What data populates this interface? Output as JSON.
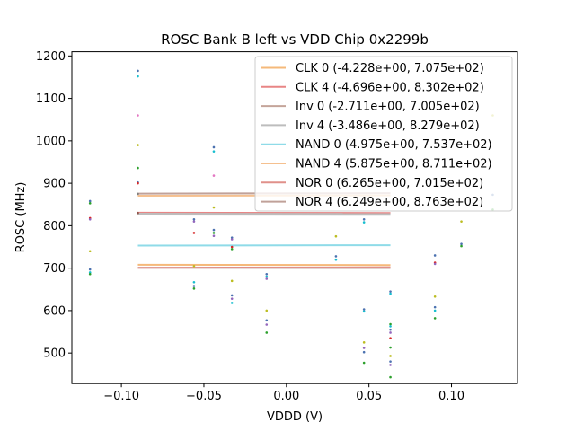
{
  "chart_data": {
    "type": "scatter",
    "title": "ROSC Bank B left vs VDD Chip 0x2299b",
    "xlabel": "VDDD (V)",
    "ylabel": "ROSC (MHz)",
    "xlim": [
      -0.13,
      0.14
    ],
    "ylim": [
      428,
      1210
    ],
    "xticks": [
      -0.1,
      -0.05,
      0.0,
      0.05,
      0.1
    ],
    "xtick_labels": [
      "−0.10",
      "−0.05",
      "0.00",
      "0.05",
      "0.10"
    ],
    "yticks": [
      500,
      600,
      700,
      800,
      900,
      1000,
      1100,
      1200
    ],
    "ytick_labels": [
      "500",
      "600",
      "700",
      "800",
      "900",
      "1000",
      "1100",
      "1200"
    ],
    "fit_range": [
      -0.09,
      0.063
    ],
    "legend_position": "top-right",
    "series": [
      {
        "name": "CLK 0",
        "label": "CLK 0 (-4.228e+00, 7.075e+02)",
        "slope": -4.228,
        "intercept": 707.5,
        "color": "#f5b97a"
      },
      {
        "name": "CLK 4",
        "label": "CLK 4 (-4.696e+00, 8.302e+02)",
        "slope": -4.696,
        "intercept": 830.2,
        "color": "#e88585"
      },
      {
        "name": "Inv 0",
        "label": "Inv 0 (-2.711e+00, 7.005e+02)",
        "slope": -2.711,
        "intercept": 700.5,
        "color": "#c4a49a"
      },
      {
        "name": "Inv 4",
        "label": "Inv 4 (-3.486e+00, 8.279e+02)",
        "slope": -3.486,
        "intercept": 827.9,
        "color": "#bdbdbd"
      },
      {
        "name": "NAND 0",
        "label": "NAND 0 (4.975e+00, 7.537e+02)",
        "slope": 4.975,
        "intercept": 753.7,
        "color": "#8fdbe8"
      },
      {
        "name": "NAND 4",
        "label": "NAND 4 (5.875e+00, 8.711e+02)",
        "slope": 5.875,
        "intercept": 871.1,
        "color": "#f5c08f"
      },
      {
        "name": "NOR 0",
        "label": "NOR 0 (6.265e+00, 7.015e+02)",
        "slope": 6.265,
        "intercept": 701.5,
        "color": "#e0908a"
      },
      {
        "name": "NOR 4",
        "label": "NOR 4 (6.249e+00, 8.763e+02)",
        "slope": 6.249,
        "intercept": 876.3,
        "color": "#c0a199"
      }
    ],
    "points": [
      {
        "x": -0.119,
        "y": 858,
        "color": "#4c72b0"
      },
      {
        "x": -0.119,
        "y": 853,
        "color": "#2ca02c"
      },
      {
        "x": -0.119,
        "y": 818,
        "color": "#d62728"
      },
      {
        "x": -0.119,
        "y": 815,
        "color": "#9467bd"
      },
      {
        "x": -0.119,
        "y": 740,
        "color": "#bcbd22"
      },
      {
        "x": -0.119,
        "y": 697,
        "color": "#4c72b0"
      },
      {
        "x": -0.119,
        "y": 690,
        "color": "#17becf"
      },
      {
        "x": -0.119,
        "y": 686,
        "color": "#2ca02c"
      },
      {
        "x": -0.09,
        "y": 1165,
        "color": "#4c72b0"
      },
      {
        "x": -0.09,
        "y": 1152,
        "color": "#17becf"
      },
      {
        "x": -0.09,
        "y": 1060,
        "color": "#e377c2"
      },
      {
        "x": -0.09,
        "y": 990,
        "color": "#bcbd22"
      },
      {
        "x": -0.09,
        "y": 936,
        "color": "#2ca02c"
      },
      {
        "x": -0.09,
        "y": 902,
        "color": "#4c72b0"
      },
      {
        "x": -0.09,
        "y": 900,
        "color": "#d62728"
      },
      {
        "x": -0.09,
        "y": 875,
        "color": "#7f7f7f"
      },
      {
        "x": -0.09,
        "y": 830,
        "color": "#8c564b"
      },
      {
        "x": -0.056,
        "y": 815,
        "color": "#4c72b0"
      },
      {
        "x": -0.056,
        "y": 810,
        "color": "#9467bd"
      },
      {
        "x": -0.056,
        "y": 783,
        "color": "#d62728"
      },
      {
        "x": -0.056,
        "y": 705,
        "color": "#bcbd22"
      },
      {
        "x": -0.056,
        "y": 667,
        "color": "#17becf"
      },
      {
        "x": -0.056,
        "y": 658,
        "color": "#4c72b0"
      },
      {
        "x": -0.056,
        "y": 652,
        "color": "#2ca02c"
      },
      {
        "x": -0.044,
        "y": 985,
        "color": "#4c72b0"
      },
      {
        "x": -0.044,
        "y": 975,
        "color": "#17becf"
      },
      {
        "x": -0.044,
        "y": 918,
        "color": "#e377c2"
      },
      {
        "x": -0.044,
        "y": 843,
        "color": "#bcbd22"
      },
      {
        "x": -0.044,
        "y": 790,
        "color": "#4c72b0"
      },
      {
        "x": -0.044,
        "y": 783,
        "color": "#2ca02c"
      },
      {
        "x": -0.044,
        "y": 776,
        "color": "#9467bd"
      },
      {
        "x": -0.033,
        "y": 772,
        "color": "#4c72b0"
      },
      {
        "x": -0.033,
        "y": 768,
        "color": "#9467bd"
      },
      {
        "x": -0.033,
        "y": 750,
        "color": "#d62728"
      },
      {
        "x": -0.033,
        "y": 745,
        "color": "#2ca02c"
      },
      {
        "x": -0.033,
        "y": 670,
        "color": "#bcbd22"
      },
      {
        "x": -0.033,
        "y": 636,
        "color": "#4c72b0"
      },
      {
        "x": -0.033,
        "y": 628,
        "color": "#9467bd"
      },
      {
        "x": -0.033,
        "y": 618,
        "color": "#17becf"
      },
      {
        "x": -0.012,
        "y": 686,
        "color": "#4c72b0"
      },
      {
        "x": -0.012,
        "y": 680,
        "color": "#17becf"
      },
      {
        "x": -0.012,
        "y": 675,
        "color": "#9467bd"
      },
      {
        "x": -0.012,
        "y": 600,
        "color": "#bcbd22"
      },
      {
        "x": -0.012,
        "y": 577,
        "color": "#4c72b0"
      },
      {
        "x": -0.012,
        "y": 567,
        "color": "#9467bd"
      },
      {
        "x": -0.012,
        "y": 548,
        "color": "#2ca02c"
      },
      {
        "x": 0.03,
        "y": 775,
        "color": "#bcbd22"
      },
      {
        "x": 0.03,
        "y": 728,
        "color": "#4c72b0"
      },
      {
        "x": 0.03,
        "y": 720,
        "color": "#17becf"
      },
      {
        "x": 0.047,
        "y": 815,
        "color": "#4c72b0"
      },
      {
        "x": 0.047,
        "y": 808,
        "color": "#17becf"
      },
      {
        "x": 0.047,
        "y": 603,
        "color": "#4c72b0"
      },
      {
        "x": 0.047,
        "y": 598,
        "color": "#17becf"
      },
      {
        "x": 0.047,
        "y": 525,
        "color": "#bcbd22"
      },
      {
        "x": 0.047,
        "y": 512,
        "color": "#9467bd"
      },
      {
        "x": 0.047,
        "y": 502,
        "color": "#4c72b0"
      },
      {
        "x": 0.047,
        "y": 477,
        "color": "#2ca02c"
      },
      {
        "x": 0.063,
        "y": 645,
        "color": "#4c72b0"
      },
      {
        "x": 0.063,
        "y": 640,
        "color": "#17becf"
      },
      {
        "x": 0.063,
        "y": 568,
        "color": "#2ca02c"
      },
      {
        "x": 0.063,
        "y": 563,
        "color": "#17becf"
      },
      {
        "x": 0.063,
        "y": 555,
        "color": "#4c72b0"
      },
      {
        "x": 0.063,
        "y": 548,
        "color": "#9467bd"
      },
      {
        "x": 0.063,
        "y": 535,
        "color": "#d62728"
      },
      {
        "x": 0.063,
        "y": 513,
        "color": "#2ca02c"
      },
      {
        "x": 0.063,
        "y": 493,
        "color": "#bcbd22"
      },
      {
        "x": 0.063,
        "y": 480,
        "color": "#4c72b0"
      },
      {
        "x": 0.063,
        "y": 472,
        "color": "#9467bd"
      },
      {
        "x": 0.063,
        "y": 443,
        "color": "#2ca02c"
      },
      {
        "x": 0.09,
        "y": 730,
        "color": "#4c72b0"
      },
      {
        "x": 0.09,
        "y": 713,
        "color": "#d62728"
      },
      {
        "x": 0.09,
        "y": 710,
        "color": "#9467bd"
      },
      {
        "x": 0.09,
        "y": 633,
        "color": "#bcbd22"
      },
      {
        "x": 0.09,
        "y": 608,
        "color": "#4c72b0"
      },
      {
        "x": 0.09,
        "y": 600,
        "color": "#17becf"
      },
      {
        "x": 0.09,
        "y": 582,
        "color": "#2ca02c"
      },
      {
        "x": 0.106,
        "y": 810,
        "color": "#bcbd22"
      },
      {
        "x": 0.106,
        "y": 757,
        "color": "#4c72b0"
      },
      {
        "x": 0.106,
        "y": 752,
        "color": "#2ca02c"
      },
      {
        "x": 0.125,
        "y": 1060,
        "color": "#bcbd22"
      },
      {
        "x": 0.125,
        "y": 873,
        "color": "#4c72b0"
      },
      {
        "x": 0.125,
        "y": 838,
        "color": "#2ca02c"
      }
    ]
  }
}
